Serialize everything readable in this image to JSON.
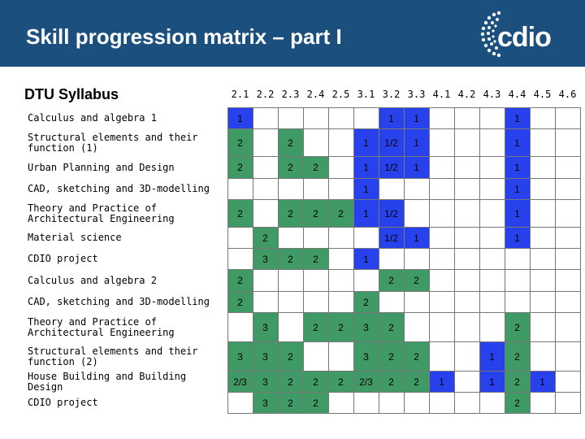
{
  "header": {
    "title": "Skill progression matrix – part I",
    "logo_text": "cdio",
    "background": "#1b4f7d"
  },
  "colors": {
    "green": "#3f9a66",
    "blue": "#2742ec",
    "white": "#ffffff",
    "grid": "#777777"
  },
  "table": {
    "label_header": "DTU Syllabus",
    "columns": [
      "2.1",
      "2.2",
      "2.3",
      "2.4",
      "2.5",
      "3.1",
      "3.2",
      "3.3",
      "4.1",
      "4.2",
      "4.3",
      "4.4",
      "4.5",
      "4.6"
    ],
    "rows": [
      {
        "label": "Calculus and algebra 1",
        "cells": [
          {
            "v": "1",
            "c": "b"
          },
          {
            "v": "",
            "c": "w"
          },
          {
            "v": "",
            "c": "w"
          },
          {
            "v": "",
            "c": "w"
          },
          {
            "v": "",
            "c": "w"
          },
          {
            "v": "",
            "c": "w"
          },
          {
            "v": "1",
            "c": "b"
          },
          {
            "v": "1",
            "c": "b"
          },
          {
            "v": "",
            "c": "w"
          },
          {
            "v": "",
            "c": "w"
          },
          {
            "v": "",
            "c": "w"
          },
          {
            "v": "1",
            "c": "b"
          },
          {
            "v": "",
            "c": "w"
          },
          {
            "v": "",
            "c": "w"
          }
        ]
      },
      {
        "label": "Structural elements and their function (1)",
        "cells": [
          {
            "v": "2",
            "c": "g"
          },
          {
            "v": "",
            "c": "w"
          },
          {
            "v": "2",
            "c": "g"
          },
          {
            "v": "",
            "c": "w"
          },
          {
            "v": "",
            "c": "w"
          },
          {
            "v": "1",
            "c": "b"
          },
          {
            "v": "1/2",
            "c": "b"
          },
          {
            "v": "1",
            "c": "b"
          },
          {
            "v": "",
            "c": "w"
          },
          {
            "v": "",
            "c": "w"
          },
          {
            "v": "",
            "c": "w"
          },
          {
            "v": "1",
            "c": "b"
          },
          {
            "v": "",
            "c": "w"
          },
          {
            "v": "",
            "c": "w"
          }
        ]
      },
      {
        "label": "Urban Planning and Design",
        "cells": [
          {
            "v": "2",
            "c": "g"
          },
          {
            "v": "",
            "c": "w"
          },
          {
            "v": "2",
            "c": "g"
          },
          {
            "v": "2",
            "c": "g"
          },
          {
            "v": "",
            "c": "w"
          },
          {
            "v": "1",
            "c": "b"
          },
          {
            "v": "1/2",
            "c": "b"
          },
          {
            "v": "1",
            "c": "b"
          },
          {
            "v": "",
            "c": "w"
          },
          {
            "v": "",
            "c": "w"
          },
          {
            "v": "",
            "c": "w"
          },
          {
            "v": "1",
            "c": "b"
          },
          {
            "v": "",
            "c": "w"
          },
          {
            "v": "",
            "c": "w"
          }
        ]
      },
      {
        "label": "CAD, sketching and 3D-modelling",
        "cells": [
          {
            "v": "",
            "c": "w"
          },
          {
            "v": "",
            "c": "w"
          },
          {
            "v": "",
            "c": "w"
          },
          {
            "v": "",
            "c": "w"
          },
          {
            "v": "",
            "c": "w"
          },
          {
            "v": "1",
            "c": "b"
          },
          {
            "v": "",
            "c": "w"
          },
          {
            "v": "",
            "c": "w"
          },
          {
            "v": "",
            "c": "w"
          },
          {
            "v": "",
            "c": "w"
          },
          {
            "v": "",
            "c": "w"
          },
          {
            "v": "1",
            "c": "b"
          },
          {
            "v": "",
            "c": "w"
          },
          {
            "v": "",
            "c": "w"
          }
        ]
      },
      {
        "label": "Theory and Practice of Architectural Engineering",
        "cells": [
          {
            "v": "2",
            "c": "g"
          },
          {
            "v": "",
            "c": "w"
          },
          {
            "v": "2",
            "c": "g"
          },
          {
            "v": "2",
            "c": "g"
          },
          {
            "v": "2",
            "c": "g"
          },
          {
            "v": "1",
            "c": "b"
          },
          {
            "v": "1/2",
            "c": "b"
          },
          {
            "v": "",
            "c": "w"
          },
          {
            "v": "",
            "c": "w"
          },
          {
            "v": "",
            "c": "w"
          },
          {
            "v": "",
            "c": "w"
          },
          {
            "v": "1",
            "c": "b"
          },
          {
            "v": "",
            "c": "w"
          },
          {
            "v": "",
            "c": "w"
          }
        ]
      },
      {
        "label": "Material science",
        "cells": [
          {
            "v": "",
            "c": "w"
          },
          {
            "v": "2",
            "c": "g"
          },
          {
            "v": "",
            "c": "w"
          },
          {
            "v": "",
            "c": "w"
          },
          {
            "v": "",
            "c": "w"
          },
          {
            "v": "",
            "c": "w"
          },
          {
            "v": "1/2",
            "c": "b"
          },
          {
            "v": "1",
            "c": "b"
          },
          {
            "v": "",
            "c": "w"
          },
          {
            "v": "",
            "c": "w"
          },
          {
            "v": "",
            "c": "w"
          },
          {
            "v": "1",
            "c": "b"
          },
          {
            "v": "",
            "c": "w"
          },
          {
            "v": "",
            "c": "w"
          }
        ]
      },
      {
        "label": "CDIO project",
        "cells": [
          {
            "v": "",
            "c": "w"
          },
          {
            "v": "3",
            "c": "g"
          },
          {
            "v": "2",
            "c": "g"
          },
          {
            "v": "2",
            "c": "g"
          },
          {
            "v": "",
            "c": "w"
          },
          {
            "v": "1",
            "c": "b"
          },
          {
            "v": "",
            "c": "w"
          },
          {
            "v": "",
            "c": "w"
          },
          {
            "v": "",
            "c": "w"
          },
          {
            "v": "",
            "c": "w"
          },
          {
            "v": "",
            "c": "w"
          },
          {
            "v": "",
            "c": "w"
          },
          {
            "v": "",
            "c": "w"
          },
          {
            "v": "",
            "c": "w"
          }
        ]
      },
      {
        "label": "Calculus and algebra 2",
        "cells": [
          {
            "v": "2",
            "c": "g"
          },
          {
            "v": "",
            "c": "w"
          },
          {
            "v": "",
            "c": "w"
          },
          {
            "v": "",
            "c": "w"
          },
          {
            "v": "",
            "c": "w"
          },
          {
            "v": "",
            "c": "w"
          },
          {
            "v": "2",
            "c": "g"
          },
          {
            "v": "2",
            "c": "g"
          },
          {
            "v": "",
            "c": "w"
          },
          {
            "v": "",
            "c": "w"
          },
          {
            "v": "",
            "c": "w"
          },
          {
            "v": "",
            "c": "w"
          },
          {
            "v": "",
            "c": "w"
          },
          {
            "v": "",
            "c": "w"
          }
        ]
      },
      {
        "label": "CAD, sketching and 3D-modelling",
        "cells": [
          {
            "v": "2",
            "c": "g"
          },
          {
            "v": "",
            "c": "w"
          },
          {
            "v": "",
            "c": "w"
          },
          {
            "v": "",
            "c": "w"
          },
          {
            "v": "",
            "c": "w"
          },
          {
            "v": "2",
            "c": "g"
          },
          {
            "v": "",
            "c": "w"
          },
          {
            "v": "",
            "c": "w"
          },
          {
            "v": "",
            "c": "w"
          },
          {
            "v": "",
            "c": "w"
          },
          {
            "v": "",
            "c": "w"
          },
          {
            "v": "",
            "c": "w"
          },
          {
            "v": "",
            "c": "w"
          },
          {
            "v": "",
            "c": "w"
          }
        ]
      },
      {
        "label": "Theory and Practice of Architectural Engineering",
        "cells": [
          {
            "v": "",
            "c": "w"
          },
          {
            "v": "3",
            "c": "g"
          },
          {
            "v": "",
            "c": "w"
          },
          {
            "v": "2",
            "c": "g"
          },
          {
            "v": "2",
            "c": "g"
          },
          {
            "v": "3",
            "c": "g"
          },
          {
            "v": "2",
            "c": "g"
          },
          {
            "v": "",
            "c": "w"
          },
          {
            "v": "",
            "c": "w"
          },
          {
            "v": "",
            "c": "w"
          },
          {
            "v": "",
            "c": "w"
          },
          {
            "v": "2",
            "c": "g"
          },
          {
            "v": "",
            "c": "w"
          },
          {
            "v": "",
            "c": "w"
          }
        ]
      },
      {
        "label": "Structural elements and their function (2)",
        "cells": [
          {
            "v": "3",
            "c": "g"
          },
          {
            "v": "3",
            "c": "g"
          },
          {
            "v": "2",
            "c": "g"
          },
          {
            "v": "",
            "c": "w"
          },
          {
            "v": "",
            "c": "w"
          },
          {
            "v": "3",
            "c": "g"
          },
          {
            "v": "2",
            "c": "g"
          },
          {
            "v": "2",
            "c": "g"
          },
          {
            "v": "",
            "c": "w"
          },
          {
            "v": "",
            "c": "w"
          },
          {
            "v": "1",
            "c": "b"
          },
          {
            "v": "2",
            "c": "g"
          },
          {
            "v": "",
            "c": "w"
          },
          {
            "v": "",
            "c": "w"
          }
        ]
      },
      {
        "label": "House Building and Building Design",
        "cells": [
          {
            "v": "2/3",
            "c": "g"
          },
          {
            "v": "3",
            "c": "g"
          },
          {
            "v": "2",
            "c": "g"
          },
          {
            "v": "2",
            "c": "g"
          },
          {
            "v": "2",
            "c": "g"
          },
          {
            "v": "2/3",
            "c": "g"
          },
          {
            "v": "2",
            "c": "g"
          },
          {
            "v": "2",
            "c": "g"
          },
          {
            "v": "1",
            "c": "b"
          },
          {
            "v": "",
            "c": "w"
          },
          {
            "v": "1",
            "c": "b"
          },
          {
            "v": "2",
            "c": "g"
          },
          {
            "v": "1",
            "c": "b"
          },
          {
            "v": "",
            "c": "w"
          }
        ]
      },
      {
        "label": "CDIO project",
        "cells": [
          {
            "v": "",
            "c": "w"
          },
          {
            "v": "3",
            "c": "g"
          },
          {
            "v": "2",
            "c": "g"
          },
          {
            "v": "2",
            "c": "g"
          },
          {
            "v": "",
            "c": "w"
          },
          {
            "v": "",
            "c": "w"
          },
          {
            "v": "",
            "c": "w"
          },
          {
            "v": "",
            "c": "w"
          },
          {
            "v": "",
            "c": "w"
          },
          {
            "v": "",
            "c": "w"
          },
          {
            "v": "",
            "c": "w"
          },
          {
            "v": "2",
            "c": "g"
          },
          {
            "v": "",
            "c": "w"
          },
          {
            "v": "",
            "c": "w"
          }
        ]
      }
    ]
  }
}
